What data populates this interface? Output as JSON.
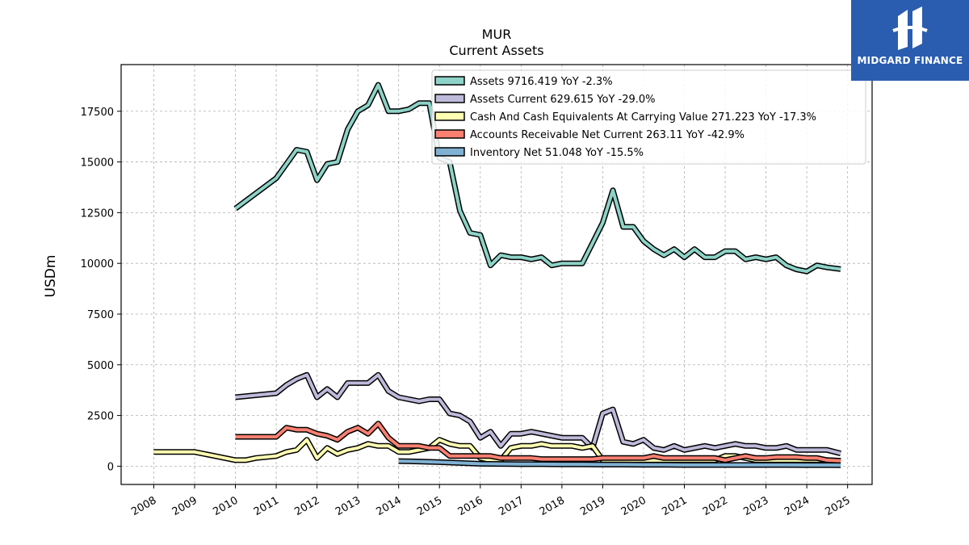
{
  "brand": {
    "name": "MIDGARD FINANCE",
    "bg_color": "#2a5db0"
  },
  "chart_data": {
    "type": "line",
    "title": "MUR",
    "subtitle": "Current  Assets",
    "xlabel": "",
    "ylabel": "USDm",
    "xlim": [
      2007.2,
      2025.6
    ],
    "ylim": [
      -900,
      19800
    ],
    "yticks": [
      0,
      2500,
      5000,
      7500,
      10000,
      12500,
      15000,
      17500
    ],
    "xticks": [
      "2008",
      "2009",
      "2010",
      "2011",
      "2012",
      "2013",
      "2014",
      "2015",
      "2016",
      "2017",
      "2018",
      "2019",
      "2020",
      "2021",
      "2022",
      "2023",
      "2024",
      "2025"
    ],
    "grid": true,
    "legend_position": "top-right",
    "series": [
      {
        "name": "Assets",
        "legend": "Assets  9716.419 YoY -2.3%",
        "color": "#8dd3c7",
        "x": [
          2010.0,
          2011.0,
          2011.25,
          2011.5,
          2011.75,
          2012.0,
          2012.25,
          2012.5,
          2012.75,
          2013.0,
          2013.25,
          2013.5,
          2013.75,
          2014.0,
          2014.25,
          2014.5,
          2014.75,
          2015.0,
          2015.25,
          2015.5,
          2015.75,
          2016.0,
          2016.25,
          2016.5,
          2016.75,
          2017.0,
          2017.25,
          2017.5,
          2017.75,
          2018.0,
          2018.25,
          2018.5,
          2018.75,
          2019.0,
          2019.25,
          2019.5,
          2019.75,
          2020.0,
          2020.25,
          2020.5,
          2020.75,
          2021.0,
          2021.25,
          2021.5,
          2021.75,
          2022.0,
          2022.25,
          2022.5,
          2022.75,
          2023.0,
          2023.25,
          2023.5,
          2023.75,
          2024.0,
          2024.25,
          2024.5,
          2024.83
        ],
        "y": [
          12700,
          14200,
          14900,
          15600,
          15500,
          14100,
          14900,
          15000,
          16600,
          17500,
          17800,
          18800,
          17500,
          17500,
          17600,
          17900,
          17900,
          15200,
          15000,
          12600,
          11500,
          11400,
          9900,
          10400,
          10300,
          10300,
          10200,
          10300,
          9900,
          10000,
          10000,
          10000,
          11000,
          12000,
          13600,
          11800,
          11800,
          11100,
          10700,
          10400,
          10700,
          10300,
          10700,
          10300,
          10300,
          10600,
          10600,
          10200,
          10300,
          10200,
          10300,
          9900,
          9700,
          9600,
          9900,
          9800,
          9716.419
        ]
      },
      {
        "name": "Assets Current",
        "legend": "Assets Current  629.615 YoY -29.0%",
        "color": "#bebada",
        "x": [
          2010.0,
          2011.0,
          2011.25,
          2011.5,
          2011.75,
          2012.0,
          2012.25,
          2012.5,
          2012.75,
          2013.0,
          2013.25,
          2013.5,
          2013.75,
          2014.0,
          2014.25,
          2014.5,
          2014.75,
          2015.0,
          2015.25,
          2015.5,
          2015.75,
          2016.0,
          2016.25,
          2016.5,
          2016.75,
          2017.0,
          2017.25,
          2017.5,
          2017.75,
          2018.0,
          2018.25,
          2018.5,
          2018.75,
          2019.0,
          2019.25,
          2019.5,
          2019.75,
          2020.0,
          2020.25,
          2020.5,
          2020.75,
          2021.0,
          2021.25,
          2021.5,
          2021.75,
          2022.0,
          2022.25,
          2022.5,
          2022.75,
          2023.0,
          2023.25,
          2023.5,
          2023.75,
          2024.0,
          2024.25,
          2024.5,
          2024.83
        ],
        "y": [
          3400,
          3600,
          4000,
          4300,
          4500,
          3400,
          3800,
          3400,
          4100,
          4100,
          4100,
          4500,
          3700,
          3400,
          3300,
          3200,
          3300,
          3300,
          2600,
          2500,
          2200,
          1400,
          1700,
          1000,
          1600,
          1600,
          1700,
          1600,
          1500,
          1400,
          1400,
          1400,
          900,
          2600,
          2800,
          1200,
          1100,
          1300,
          900,
          800,
          1000,
          800,
          900,
          1000,
          900,
          1000,
          1100,
          1000,
          1000,
          900,
          900,
          1000,
          800,
          800,
          800,
          800,
          629.615
        ]
      },
      {
        "name": "Cash And Cash Equivalents At Carrying Value",
        "legend": "Cash And Cash Equivalents At Carrying Value  271.223 YoY -17.3%",
        "color": "#ffffb3",
        "x": [
          2008.0,
          2009.0,
          2009.5,
          2010.0,
          2010.25,
          2010.5,
          2011.0,
          2011.25,
          2011.5,
          2011.75,
          2012.0,
          2012.25,
          2012.5,
          2012.75,
          2013.0,
          2013.25,
          2013.5,
          2013.75,
          2014.0,
          2014.25,
          2014.5,
          2014.75,
          2015.0,
          2015.25,
          2015.5,
          2015.75,
          2016.0,
          2016.25,
          2016.5,
          2016.75,
          2017.0,
          2017.25,
          2017.5,
          2017.75,
          2018.0,
          2018.25,
          2018.5,
          2018.75,
          2019.0,
          2019.25,
          2019.5,
          2019.75,
          2020.0,
          2020.25,
          2020.5,
          2020.75,
          2021.0,
          2021.25,
          2021.5,
          2021.75,
          2022.0,
          2022.25,
          2022.5,
          2022.75,
          2023.0,
          2023.25,
          2023.5,
          2023.75,
          2024.0,
          2024.25,
          2024.5,
          2024.83
        ],
        "y": [
          700,
          700,
          500,
          300,
          300,
          400,
          500,
          700,
          800,
          1300,
          400,
          900,
          600,
          800,
          900,
          1100,
          1000,
          1000,
          700,
          700,
          800,
          900,
          1300,
          1100,
          1000,
          1000,
          400,
          300,
          300,
          900,
          1000,
          1000,
          1100,
          1000,
          1000,
          1000,
          900,
          1000,
          300,
          300,
          300,
          300,
          300,
          300,
          300,
          300,
          300,
          300,
          300,
          300,
          500,
          500,
          400,
          300,
          300,
          300,
          300,
          300,
          300,
          300,
          300,
          271.223
        ]
      },
      {
        "name": "Accounts Receivable Net Current",
        "legend": "Accounts Receivable Net Current  263.11 YoY -42.9%",
        "color": "#fb8072",
        "x": [
          2010.0,
          2011.0,
          2011.25,
          2011.5,
          2011.75,
          2012.0,
          2012.25,
          2012.5,
          2012.75,
          2013.0,
          2013.25,
          2013.5,
          2013.75,
          2014.0,
          2014.25,
          2014.5,
          2014.75,
          2015.0,
          2015.25,
          2015.5,
          2015.75,
          2016.0,
          2016.25,
          2016.5,
          2016.75,
          2017.0,
          2017.25,
          2017.5,
          2017.75,
          2018.0,
          2018.25,
          2018.5,
          2018.75,
          2019.0,
          2019.25,
          2019.5,
          2019.75,
          2020.0,
          2020.25,
          2020.5,
          2020.75,
          2021.0,
          2021.25,
          2021.5,
          2021.75,
          2022.0,
          2022.25,
          2022.5,
          2022.75,
          2023.0,
          2023.25,
          2023.5,
          2023.75,
          2024.0,
          2024.25,
          2024.5,
          2024.83
        ],
        "y": [
          1450,
          1450,
          1900,
          1800,
          1800,
          1600,
          1500,
          1300,
          1700,
          1900,
          1600,
          2100,
          1400,
          1000,
          1000,
          1000,
          900,
          900,
          500,
          500,
          500,
          500,
          500,
          400,
          400,
          400,
          400,
          350,
          350,
          350,
          350,
          350,
          350,
          400,
          400,
          400,
          400,
          400,
          500,
          400,
          400,
          400,
          400,
          400,
          400,
          300,
          400,
          500,
          400,
          400,
          450,
          450,
          450,
          400,
          400,
          300,
          263.11
        ]
      },
      {
        "name": "Inventory Net",
        "legend": "Inventory Net  51.048 YoY -15.5%",
        "color": "#80b1d3",
        "x": [
          2014.0,
          2014.5,
          2015.0,
          2015.5,
          2016.0,
          2016.5,
          2017.0,
          2017.5,
          2018.0,
          2018.5,
          2019.0,
          2019.5,
          2020.0,
          2020.5,
          2021.0,
          2021.5,
          2022.0,
          2022.5,
          2023.0,
          2023.5,
          2024.0,
          2024.5,
          2024.83
        ],
        "y": [
          250,
          230,
          200,
          160,
          120,
          110,
          100,
          100,
          90,
          90,
          80,
          80,
          70,
          70,
          60,
          60,
          60,
          60,
          60,
          60,
          55,
          55,
          51.048
        ]
      }
    ]
  }
}
